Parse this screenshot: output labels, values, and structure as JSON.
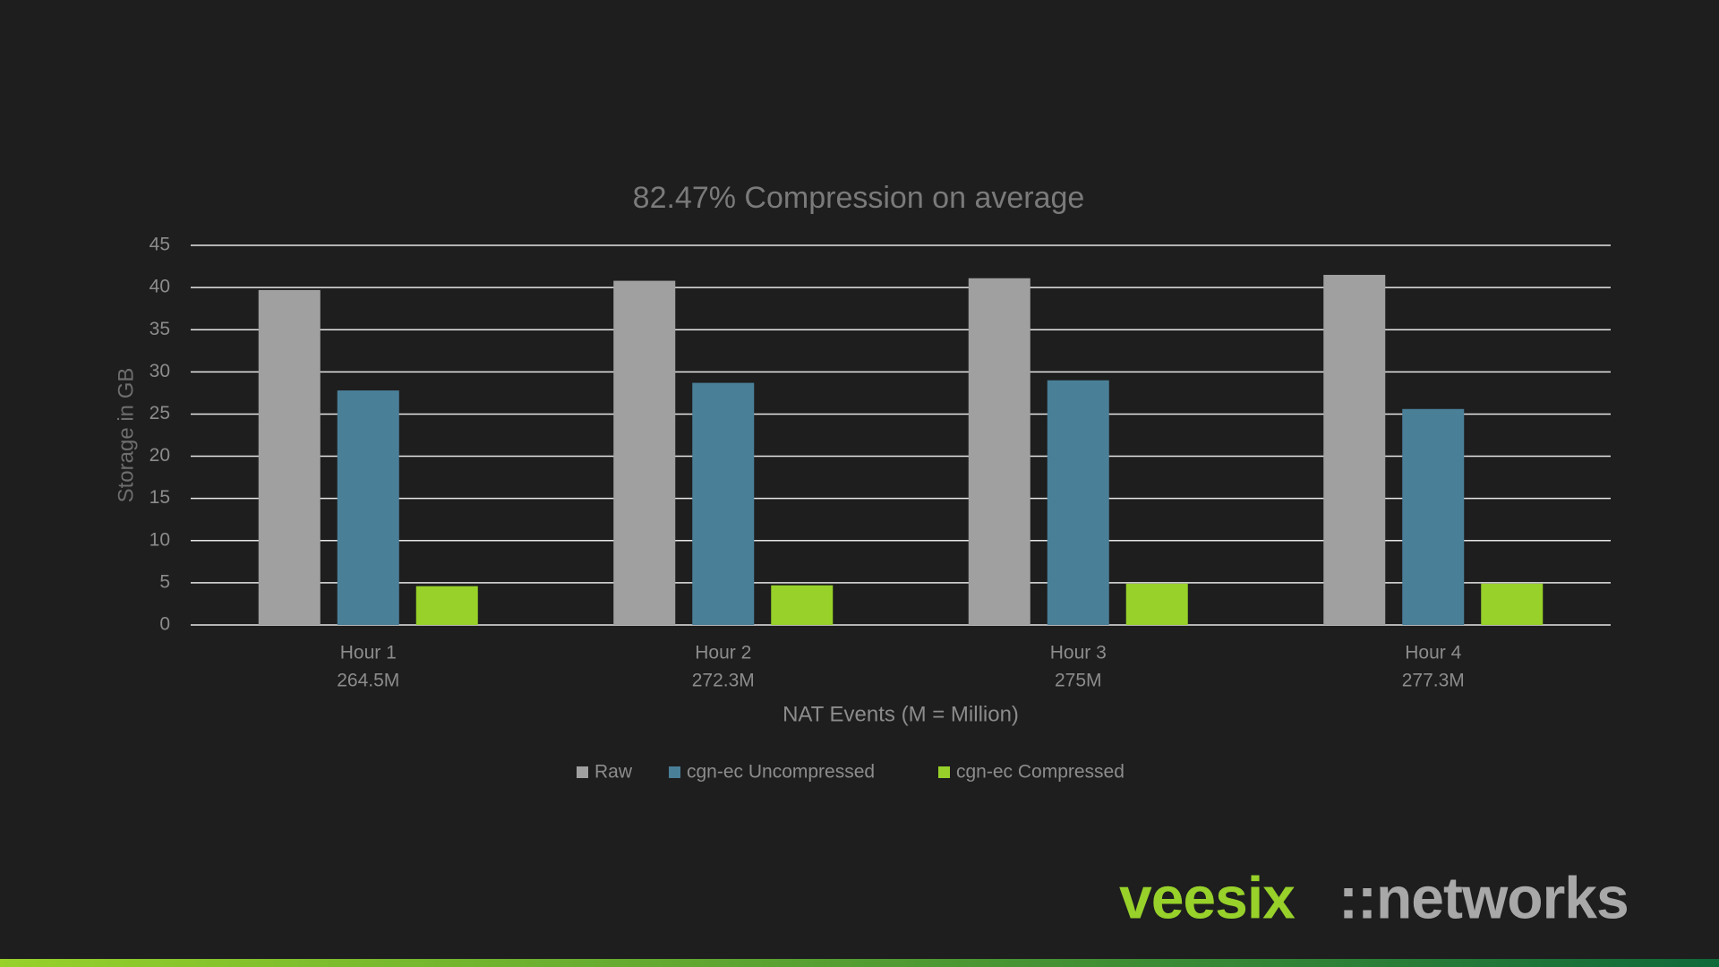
{
  "chart_data": {
    "type": "bar",
    "title": "82.47% Compression on average",
    "x_label": "NAT Events (M = Million)",
    "y_label": "Storage in GB",
    "categories": [
      [
        "Hour 1",
        "264.5M"
      ],
      [
        "Hour 2",
        "272.3M"
      ],
      [
        "Hour 3",
        "275M"
      ],
      [
        "Hour 4",
        "277.3M"
      ]
    ],
    "series": [
      {
        "name": "Raw",
        "color": "#a0a0a0",
        "values": [
          39.7,
          40.8,
          41.1,
          41.5
        ]
      },
      {
        "name": "cgn-ec Uncompressed",
        "color": "#4a7f98",
        "values": [
          27.8,
          28.7,
          29.0,
          25.6
        ]
      },
      {
        "name": "cgn-ec Compressed",
        "color": "#97d12a",
        "values": [
          4.6,
          4.7,
          4.9,
          4.9
        ]
      }
    ],
    "ylim": [
      0,
      45
    ],
    "yticks": [
      0,
      5,
      10,
      15,
      20,
      25,
      30,
      35,
      40,
      45
    ],
    "grid": true,
    "legend": "bottom"
  },
  "logo": {
    "left": "veesix",
    "right": "::networks"
  }
}
